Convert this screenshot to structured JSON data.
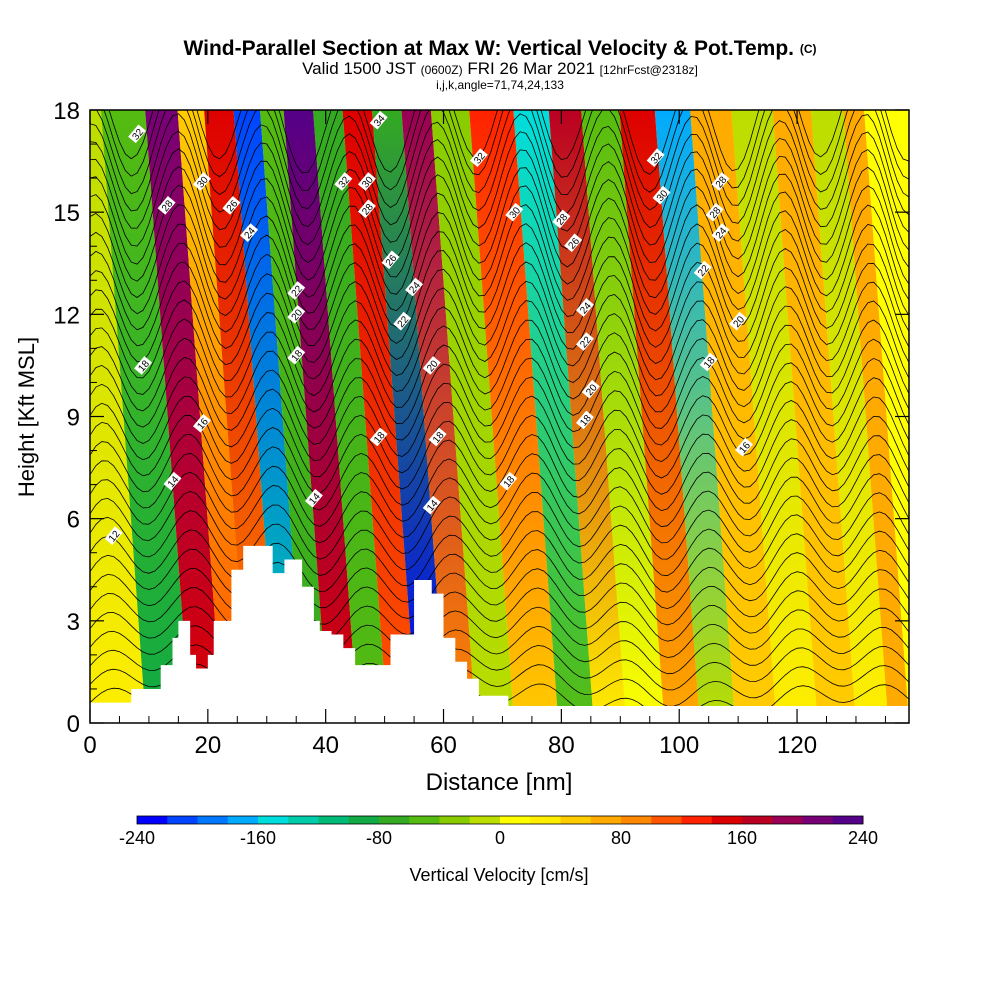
{
  "chart_data": {
    "type": "heatmap",
    "title": "Wind-Parallel Section at Max W: Vertical Velocity & Pot.Temp.",
    "title_mark": "(C)",
    "subtitle": {
      "valid": "Valid 1500 JST",
      "utc": "(0600Z)",
      "date": "FRI 26 Mar 2021",
      "forecast": "[12hrFcst@2318z]"
    },
    "indices": "i,j,k,angle=71,74,24,133",
    "xlabel": "Distance [nm]",
    "ylabel": "Height [Kft MSL]",
    "xlim": [
      0,
      139
    ],
    "ylim": [
      0,
      18
    ],
    "x_ticks": [
      0,
      20,
      40,
      60,
      80,
      100,
      120
    ],
    "y_ticks": [
      0,
      3,
      6,
      9,
      12,
      15,
      18
    ],
    "colorbar": {
      "label": "Vertical Velocity [cm/s]",
      "ticks": [
        -240,
        -160,
        -80,
        0,
        80,
        160,
        240
      ],
      "range": [
        -240,
        240
      ],
      "step": 20,
      "colors": [
        "#0000ff",
        "#0044ff",
        "#0077ff",
        "#00aaff",
        "#00dddd",
        "#00ccaa",
        "#00bb77",
        "#11aa44",
        "#33aa22",
        "#55bb11",
        "#88cc00",
        "#bbdd00",
        "#ffff00",
        "#ffee00",
        "#ffcc00",
        "#ffaa00",
        "#ff8800",
        "#ff5500",
        "#ff2200",
        "#dd0000",
        "#bb0022",
        "#990055",
        "#770077",
        "#550088"
      ]
    },
    "vertical_velocity_bands": [
      {
        "x": 5,
        "top": -20,
        "bottom": 20
      },
      {
        "x": 14,
        "top": -60,
        "bottom": -100
      },
      {
        "x": 20,
        "top": 200,
        "bottom": 140
      },
      {
        "x": 25,
        "top": 40,
        "bottom": 100
      },
      {
        "x": 29,
        "top": 140,
        "bottom": 80
      },
      {
        "x": 35,
        "top": -220,
        "bottom": -140
      },
      {
        "x": 38,
        "top": -60,
        "bottom": -80
      },
      {
        "x": 43,
        "top": 230,
        "bottom": 140
      },
      {
        "x": 48,
        "top": -80,
        "bottom": -60
      },
      {
        "x": 53,
        "top": 140,
        "bottom": 100
      },
      {
        "x": 58,
        "top": -80,
        "bottom": -230
      },
      {
        "x": 63,
        "top": 180,
        "bottom": 80
      },
      {
        "x": 68,
        "top": -40,
        "bottom": -20
      },
      {
        "x": 76,
        "top": 120,
        "bottom": 40
      },
      {
        "x": 83,
        "top": -160,
        "bottom": -60
      },
      {
        "x": 88,
        "top": 160,
        "bottom": 20
      },
      {
        "x": 94,
        "top": -60,
        "bottom": 0
      },
      {
        "x": 101,
        "top": 140,
        "bottom": 60
      },
      {
        "x": 106,
        "top": -180,
        "bottom": -20
      },
      {
        "x": 113,
        "top": 60,
        "bottom": 40
      },
      {
        "x": 120,
        "top": -20,
        "bottom": 20
      },
      {
        "x": 127,
        "top": 60,
        "bottom": 40
      },
      {
        "x": 133,
        "top": -20,
        "bottom": 20
      },
      {
        "x": 138,
        "top": 60,
        "bottom": 60
      }
    ],
    "terrain_profile": {
      "distance": [
        0,
        7,
        12,
        14,
        15,
        17,
        18,
        20,
        21,
        24,
        26,
        30,
        31,
        33,
        36,
        38,
        39,
        41,
        43,
        45,
        49,
        51,
        55,
        57,
        58,
        60,
        62,
        64,
        66,
        71,
        139
      ],
      "height": [
        0.6,
        1.0,
        1.7,
        2.5,
        3.0,
        2.0,
        1.6,
        2.0,
        3.0,
        4.5,
        5.2,
        5.2,
        4.4,
        4.8,
        4.0,
        3.0,
        2.7,
        2.6,
        2.2,
        1.7,
        1.7,
        2.6,
        4.2,
        4.2,
        3.8,
        2.5,
        1.8,
        1.3,
        0.8,
        0.5,
        0.5
      ]
    },
    "isentrope_labels": [
      {
        "text": "32",
        "x": 8,
        "y": 17.3
      },
      {
        "text": "30",
        "x": 19,
        "y": 15.9
      },
      {
        "text": "28",
        "x": 13,
        "y": 15.2
      },
      {
        "text": "26",
        "x": 24,
        "y": 15.2
      },
      {
        "text": "24",
        "x": 27,
        "y": 14.4
      },
      {
        "text": "34",
        "x": 49,
        "y": 17.7
      },
      {
        "text": "32",
        "x": 43,
        "y": 15.9
      },
      {
        "text": "30",
        "x": 47,
        "y": 15.9
      },
      {
        "text": "28",
        "x": 47,
        "y": 15.1
      },
      {
        "text": "26",
        "x": 51,
        "y": 13.6
      },
      {
        "text": "24",
        "x": 55,
        "y": 12.8
      },
      {
        "text": "22",
        "x": 53,
        "y": 11.8
      },
      {
        "text": "22",
        "x": 35,
        "y": 12.7
      },
      {
        "text": "20",
        "x": 35,
        "y": 12.0
      },
      {
        "text": "18",
        "x": 35,
        "y": 10.8
      },
      {
        "text": "18",
        "x": 9,
        "y": 10.5
      },
      {
        "text": "16",
        "x": 19,
        "y": 8.8
      },
      {
        "text": "14",
        "x": 14,
        "y": 7.1
      },
      {
        "text": "12",
        "x": 4,
        "y": 5.5
      },
      {
        "text": "14",
        "x": 38,
        "y": 6.6
      },
      {
        "text": "18",
        "x": 49,
        "y": 8.4
      },
      {
        "text": "20",
        "x": 58,
        "y": 10.5
      },
      {
        "text": "18",
        "x": 59,
        "y": 8.4
      },
      {
        "text": "14",
        "x": 58,
        "y": 6.4
      },
      {
        "text": "32",
        "x": 66,
        "y": 16.6
      },
      {
        "text": "30",
        "x": 72,
        "y": 15.0
      },
      {
        "text": "28",
        "x": 80,
        "y": 14.8
      },
      {
        "text": "26",
        "x": 82,
        "y": 14.1
      },
      {
        "text": "24",
        "x": 84,
        "y": 12.2
      },
      {
        "text": "22",
        "x": 84,
        "y": 11.2
      },
      {
        "text": "20",
        "x": 85,
        "y": 9.8
      },
      {
        "text": "18",
        "x": 84,
        "y": 8.9
      },
      {
        "text": "18",
        "x": 71,
        "y": 7.1
      },
      {
        "text": "32",
        "x": 96,
        "y": 16.6
      },
      {
        "text": "30",
        "x": 97,
        "y": 15.5
      },
      {
        "text": "28",
        "x": 107,
        "y": 15.9
      },
      {
        "text": "28",
        "x": 106,
        "y": 15.0
      },
      {
        "text": "24",
        "x": 107,
        "y": 14.4
      },
      {
        "text": "22",
        "x": 104,
        "y": 13.3
      },
      {
        "text": "20",
        "x": 110,
        "y": 11.8
      },
      {
        "text": "18",
        "x": 105,
        "y": 10.6
      },
      {
        "text": "16",
        "x": 111,
        "y": 8.1
      }
    ]
  }
}
